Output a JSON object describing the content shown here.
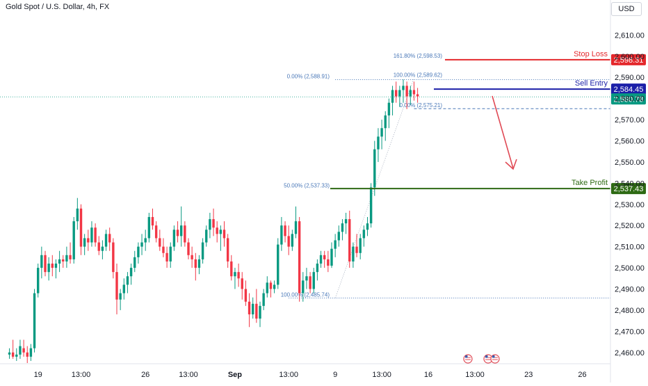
{
  "header": {
    "symbol_title": "Gold Spot / U.S. Dollar, 4h, FX",
    "currency": "USD"
  },
  "colors": {
    "up": "#089981",
    "down": "#f23645",
    "stop": "#e4282c",
    "entry": "#1b1fa8",
    "take": "#2e6a14",
    "last": "#089981",
    "fib": "#4a78b8",
    "arrow": "#e04a55"
  },
  "chart_data": {
    "type": "candlestick",
    "title": "Gold Spot / U.S. Dollar, 4h, FX",
    "ylim": [
      2455,
      2618
    ],
    "y_ticks": [
      "2,460.00",
      "2,470.00",
      "2,480.00",
      "2,490.00",
      "2,500.00",
      "2,510.00",
      "2,520.00",
      "2,530.00",
      "2,540.00",
      "2,550.00",
      "2,560.00",
      "2,570.00",
      "2,580.00",
      "2,590.00",
      "2,600.00",
      "2,610.00"
    ],
    "y_tick_values": [
      2460,
      2470,
      2480,
      2490,
      2500,
      2510,
      2520,
      2530,
      2540,
      2550,
      2560,
      2570,
      2580,
      2590,
      2600,
      2610
    ],
    "x_ticks": [
      {
        "label": "19",
        "bar": 8
      },
      {
        "label": "13:00",
        "bar": 20
      },
      {
        "label": "26",
        "bar": 38
      },
      {
        "label": "13:00",
        "bar": 50
      },
      {
        "label": "Sep",
        "bar": 63
      },
      {
        "label": "13:00",
        "bar": 78
      },
      {
        "label": "9",
        "bar": 91
      },
      {
        "label": "13:00",
        "bar": 104
      },
      {
        "label": "16",
        "bar": 117
      },
      {
        "label": "13:00",
        "bar": 130
      },
      {
        "label": "23",
        "bar": 145
      },
      {
        "label": "26",
        "bar": 160
      }
    ],
    "candles": [
      [
        2459,
        2462,
        2457,
        2460
      ],
      [
        2460,
        2466,
        2457,
        2458
      ],
      [
        2458,
        2462,
        2456,
        2459
      ],
      [
        2459,
        2466,
        2457,
        2463
      ],
      [
        2462,
        2466,
        2458,
        2460
      ],
      [
        2460,
        2463,
        2455,
        2458
      ],
      [
        2458,
        2464,
        2456,
        2462
      ],
      [
        2462,
        2490,
        2460,
        2488
      ],
      [
        2488,
        2502,
        2486,
        2500
      ],
      [
        2500,
        2510,
        2495,
        2506
      ],
      [
        2506,
        2508,
        2496,
        2498
      ],
      [
        2498,
        2505,
        2494,
        2502
      ],
      [
        2502,
        2506,
        2496,
        2500
      ],
      [
        2500,
        2504,
        2495,
        2502
      ],
      [
        2502,
        2508,
        2498,
        2504
      ],
      [
        2504,
        2506,
        2500,
        2503
      ],
      [
        2503,
        2510,
        2500,
        2506
      ],
      [
        2506,
        2512,
        2502,
        2504
      ],
      [
        2504,
        2524,
        2502,
        2522
      ],
      [
        2522,
        2533,
        2518,
        2528
      ],
      [
        2528,
        2530,
        2506,
        2510
      ],
      [
        2510,
        2516,
        2506,
        2514
      ],
      [
        2514,
        2518,
        2508,
        2512
      ],
      [
        2512,
        2522,
        2510,
        2519
      ],
      [
        2519,
        2521,
        2510,
        2512
      ],
      [
        2512,
        2515,
        2506,
        2508
      ],
      [
        2508,
        2513,
        2504,
        2510
      ],
      [
        2510,
        2518,
        2508,
        2516
      ],
      [
        2516,
        2519,
        2508,
        2512
      ],
      [
        2512,
        2514,
        2495,
        2498
      ],
      [
        2498,
        2502,
        2478,
        2485
      ],
      [
        2485,
        2490,
        2480,
        2488
      ],
      [
        2488,
        2495,
        2485,
        2492
      ],
      [
        2492,
        2498,
        2488,
        2496
      ],
      [
        2496,
        2502,
        2492,
        2500
      ],
      [
        2500,
        2508,
        2498,
        2505
      ],
      [
        2505,
        2512,
        2502,
        2510
      ],
      [
        2510,
        2516,
        2506,
        2512
      ],
      [
        2512,
        2518,
        2508,
        2514
      ],
      [
        2514,
        2526,
        2512,
        2524
      ],
      [
        2524,
        2528,
        2518,
        2520
      ],
      [
        2520,
        2522,
        2512,
        2514
      ],
      [
        2514,
        2518,
        2508,
        2510
      ],
      [
        2510,
        2514,
        2505,
        2507
      ],
      [
        2507,
        2510,
        2500,
        2503
      ],
      [
        2503,
        2512,
        2500,
        2510
      ],
      [
        2510,
        2520,
        2508,
        2518
      ],
      [
        2518,
        2522,
        2512,
        2515
      ],
      [
        2515,
        2529,
        2510,
        2520
      ],
      [
        2520,
        2522,
        2510,
        2512
      ],
      [
        2512,
        2514,
        2504,
        2506
      ],
      [
        2506,
        2510,
        2500,
        2504
      ],
      [
        2504,
        2507,
        2494,
        2500
      ],
      [
        2500,
        2506,
        2497,
        2504
      ],
      [
        2504,
        2514,
        2502,
        2512
      ],
      [
        2512,
        2520,
        2510,
        2518
      ],
      [
        2518,
        2526,
        2514,
        2523
      ],
      [
        2523,
        2528,
        2515,
        2519
      ],
      [
        2519,
        2522,
        2512,
        2516
      ],
      [
        2516,
        2520,
        2508,
        2518
      ],
      [
        2518,
        2522,
        2510,
        2514
      ],
      [
        2514,
        2516,
        2500,
        2503
      ],
      [
        2503,
        2506,
        2494,
        2496
      ],
      [
        2496,
        2500,
        2490,
        2498
      ],
      [
        2498,
        2502,
        2491,
        2495
      ],
      [
        2495,
        2498,
        2485,
        2490
      ],
      [
        2490,
        2494,
        2482,
        2484
      ],
      [
        2484,
        2488,
        2472,
        2478
      ],
      [
        2478,
        2486,
        2476,
        2483
      ],
      [
        2483,
        2490,
        2474,
        2476
      ],
      [
        2476,
        2484,
        2472,
        2482
      ],
      [
        2482,
        2490,
        2480,
        2488
      ],
      [
        2488,
        2496,
        2486,
        2493
      ],
      [
        2493,
        2494,
        2486,
        2490
      ],
      [
        2490,
        2494,
        2488,
        2492
      ],
      [
        2492,
        2514,
        2490,
        2511
      ],
      [
        2511,
        2524,
        2508,
        2520
      ],
      [
        2520,
        2522,
        2512,
        2515
      ],
      [
        2515,
        2520,
        2506,
        2510
      ],
      [
        2510,
        2518,
        2508,
        2516
      ],
      [
        2516,
        2529,
        2514,
        2522
      ],
      [
        2522,
        2524,
        2484,
        2488
      ],
      [
        2488,
        2498,
        2484,
        2494
      ],
      [
        2494,
        2500,
        2490,
        2496
      ],
      [
        2496,
        2498,
        2488,
        2490
      ],
      [
        2490,
        2500,
        2488,
        2498
      ],
      [
        2498,
        2504,
        2494,
        2502
      ],
      [
        2502,
        2508,
        2500,
        2506
      ],
      [
        2506,
        2508,
        2500,
        2504
      ],
      [
        2504,
        2508,
        2498,
        2501
      ],
      [
        2501,
        2512,
        2500,
        2509
      ],
      [
        2509,
        2516,
        2505,
        2513
      ],
      [
        2513,
        2520,
        2510,
        2517
      ],
      [
        2517,
        2523,
        2513,
        2521
      ],
      [
        2521,
        2526,
        2516,
        2523
      ],
      [
        2523,
        2527,
        2500,
        2503
      ],
      [
        2503,
        2512,
        2500,
        2510
      ],
      [
        2510,
        2516,
        2505,
        2507
      ],
      [
        2507,
        2516,
        2504,
        2514
      ],
      [
        2514,
        2520,
        2510,
        2518
      ],
      [
        2518,
        2524,
        2515,
        2521
      ],
      [
        2521,
        2540,
        2519,
        2538
      ],
      [
        2538,
        2560,
        2534,
        2556
      ],
      [
        2556,
        2566,
        2550,
        2562
      ],
      [
        2562,
        2570,
        2556,
        2566
      ],
      [
        2566,
        2574,
        2560,
        2572
      ],
      [
        2572,
        2580,
        2566,
        2578
      ],
      [
        2578,
        2586,
        2572,
        2584
      ],
      [
        2584,
        2588,
        2578,
        2581
      ],
      [
        2581,
        2586,
        2576,
        2584
      ],
      [
        2584,
        2589,
        2578,
        2586
      ],
      [
        2586,
        2588,
        2575,
        2581
      ],
      [
        2581,
        2586,
        2577,
        2584
      ],
      [
        2584,
        2588,
        2579,
        2582
      ],
      [
        2582,
        2585,
        2578,
        2581
      ]
    ],
    "levels": [
      {
        "name": "Stop Loss",
        "value": 2598.31,
        "value_label": "2,598.31",
        "role": "stop"
      },
      {
        "name": "Sell Entry",
        "value": 2584.45,
        "value_label": "2,584.45",
        "role": "entry"
      },
      {
        "name": "Take Profit",
        "value": 2537.43,
        "value_label": "2,537.43",
        "role": "take"
      }
    ],
    "last_price": {
      "value": 2580.78,
      "value_label": "2,580.78"
    },
    "fib_labels": [
      {
        "text": "161.80% (2,598.53)",
        "value": 2598.53
      },
      {
        "text": "100.00% (2,589.62)",
        "value": 2589.62
      },
      {
        "text": "0.00% (2,588.91)",
        "value": 2588.91
      },
      {
        "text": "0.00% (2,575.21)",
        "value": 2575.21
      },
      {
        "text": "50.00% (2,537.33)",
        "value": 2537.33
      },
      {
        "text": "100.00% (2,485.74)",
        "value": 2485.74
      }
    ],
    "events": 3
  }
}
